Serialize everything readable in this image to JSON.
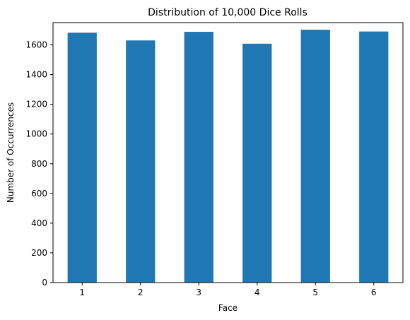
{
  "chart_data": {
    "type": "bar",
    "title": "Distribution of 10,000 Dice Rolls",
    "xlabel": "Face",
    "ylabel": "Number of Occurrences",
    "categories": [
      "1",
      "2",
      "3",
      "4",
      "5",
      "6"
    ],
    "values": [
      1682,
      1630,
      1688,
      1608,
      1702,
      1690
    ],
    "ylim": [
      0,
      1750
    ],
    "yticks": [
      0,
      200,
      400,
      600,
      800,
      1000,
      1200,
      1400,
      1600
    ],
    "bar_color": "#1f77b4",
    "grid": false,
    "legend": "none"
  }
}
